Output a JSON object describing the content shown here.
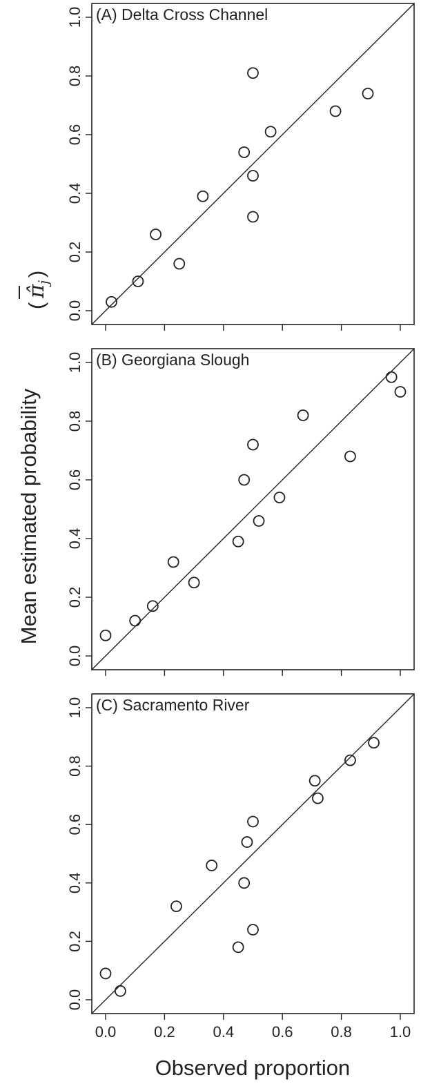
{
  "figure": {
    "xlabel": "Observed proportion",
    "ylabel": "Mean estimated probability",
    "ylabel_symbol": "π̂",
    "ylabel_subscript": "j",
    "ylabel_overbar": true
  },
  "chart_data": [
    {
      "type": "scatter",
      "title": "(A) Delta Cross Channel",
      "xlim": [
        0,
        1
      ],
      "ylim": [
        0,
        1
      ],
      "xticks": [
        0.0,
        0.2,
        0.4,
        0.6,
        0.8,
        1.0
      ],
      "yticks": [
        0.0,
        0.2,
        0.4,
        0.6,
        0.8,
        1.0
      ],
      "xtick_labels": [],
      "ytick_labels": [
        "0.0",
        "0.2",
        "0.4",
        "0.6",
        "0.8",
        "1.0"
      ],
      "reference_line": "1:1",
      "grid": false,
      "points": [
        {
          "x": 0.02,
          "y": 0.03
        },
        {
          "x": 0.11,
          "y": 0.1
        },
        {
          "x": 0.17,
          "y": 0.26
        },
        {
          "x": 0.25,
          "y": 0.16
        },
        {
          "x": 0.33,
          "y": 0.39
        },
        {
          "x": 0.47,
          "y": 0.54
        },
        {
          "x": 0.5,
          "y": 0.46
        },
        {
          "x": 0.5,
          "y": 0.32
        },
        {
          "x": 0.5,
          "y": 0.81
        },
        {
          "x": 0.56,
          "y": 0.61
        },
        {
          "x": 0.78,
          "y": 0.68
        },
        {
          "x": 0.89,
          "y": 0.74
        }
      ]
    },
    {
      "type": "scatter",
      "title": "(B) Georgiana Slough",
      "xlim": [
        0,
        1
      ],
      "ylim": [
        0,
        1
      ],
      "xticks": [
        0.0,
        0.2,
        0.4,
        0.6,
        0.8,
        1.0
      ],
      "yticks": [
        0.0,
        0.2,
        0.4,
        0.6,
        0.8,
        1.0
      ],
      "xtick_labels": [],
      "ytick_labels": [
        "0.0",
        "0.2",
        "0.4",
        "0.6",
        "0.8",
        "1.0"
      ],
      "reference_line": "1:1",
      "grid": false,
      "points": [
        {
          "x": 0.0,
          "y": 0.07
        },
        {
          "x": 0.1,
          "y": 0.12
        },
        {
          "x": 0.16,
          "y": 0.17
        },
        {
          "x": 0.23,
          "y": 0.32
        },
        {
          "x": 0.3,
          "y": 0.25
        },
        {
          "x": 0.45,
          "y": 0.39
        },
        {
          "x": 0.47,
          "y": 0.6
        },
        {
          "x": 0.5,
          "y": 0.72
        },
        {
          "x": 0.52,
          "y": 0.46
        },
        {
          "x": 0.59,
          "y": 0.54
        },
        {
          "x": 0.67,
          "y": 0.82
        },
        {
          "x": 0.83,
          "y": 0.68
        },
        {
          "x": 0.97,
          "y": 0.95
        },
        {
          "x": 1.0,
          "y": 0.9
        }
      ]
    },
    {
      "type": "scatter",
      "title": "(C) Sacramento River",
      "xlim": [
        0,
        1
      ],
      "ylim": [
        0,
        1
      ],
      "xticks": [
        0.0,
        0.2,
        0.4,
        0.6,
        0.8,
        1.0
      ],
      "yticks": [
        0.0,
        0.2,
        0.4,
        0.6,
        0.8,
        1.0
      ],
      "xtick_labels": [
        "0.0",
        "0.2",
        "0.4",
        "0.6",
        "0.8",
        "1.0"
      ],
      "ytick_labels": [
        "0.0",
        "0.2",
        "0.4",
        "0.6",
        "0.8",
        "1.0"
      ],
      "reference_line": "1:1",
      "grid": false,
      "points": [
        {
          "x": 0.0,
          "y": 0.09
        },
        {
          "x": 0.05,
          "y": 0.03
        },
        {
          "x": 0.24,
          "y": 0.32
        },
        {
          "x": 0.36,
          "y": 0.46
        },
        {
          "x": 0.45,
          "y": 0.18
        },
        {
          "x": 0.47,
          "y": 0.4
        },
        {
          "x": 0.48,
          "y": 0.54
        },
        {
          "x": 0.5,
          "y": 0.61
        },
        {
          "x": 0.5,
          "y": 0.24
        },
        {
          "x": 0.71,
          "y": 0.75
        },
        {
          "x": 0.72,
          "y": 0.69
        },
        {
          "x": 0.83,
          "y": 0.82
        },
        {
          "x": 0.91,
          "y": 0.88
        }
      ]
    }
  ]
}
